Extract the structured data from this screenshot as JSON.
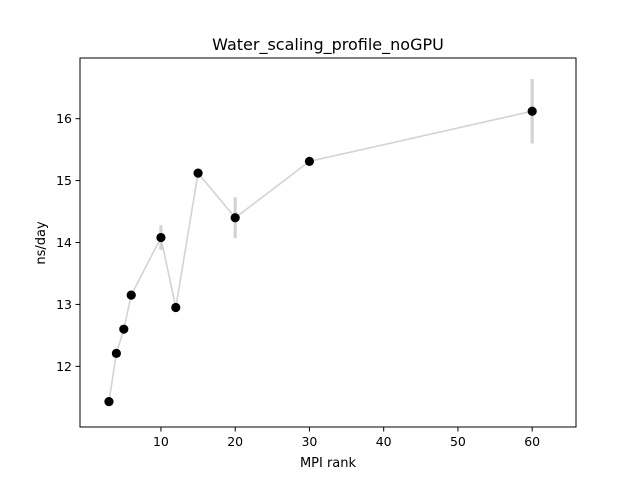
{
  "chart_data": {
    "type": "scatter",
    "title": "Water_scaling_profile_noGPU",
    "xlabel": "MPI rank",
    "ylabel": "ns/day",
    "xlim": [
      -0.9,
      65.9
    ],
    "ylim": [
      11.02,
      16.98
    ],
    "xticks": [
      10,
      20,
      30,
      40,
      50,
      60
    ],
    "yticks": [
      12,
      13,
      14,
      15,
      16
    ],
    "grid": false,
    "legend": "none",
    "series": [
      {
        "x": [
          3,
          4,
          5,
          6,
          10,
          12,
          15,
          20,
          30,
          60
        ],
        "y": [
          11.43,
          12.21,
          12.6,
          13.15,
          14.08,
          12.95,
          15.12,
          14.4,
          15.31,
          16.12
        ],
        "yerr": [
          0.04,
          0.04,
          0.04,
          0.04,
          0.2,
          0.04,
          0.05,
          0.33,
          0.06,
          0.52
        ],
        "marker_color": "#000000",
        "line_color": "#d3d3d3",
        "errorbar_color": "#d3d3d3"
      }
    ]
  }
}
